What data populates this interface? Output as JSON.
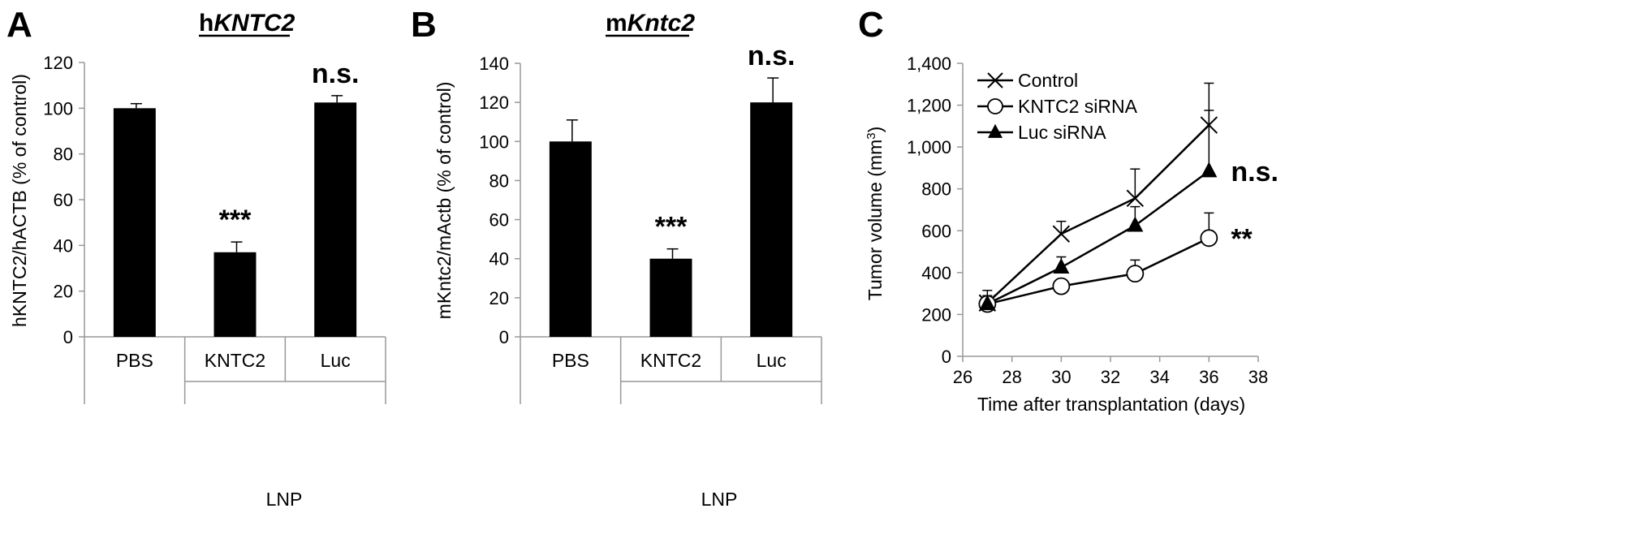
{
  "panels": {
    "A": {
      "letter": "A",
      "title_prefix": "h",
      "title_italic": "KNTC2",
      "ylabel": "hKNTC2/hACTB (% of control)",
      "group_label": "LNP"
    },
    "B": {
      "letter": "B",
      "title_prefix": "m",
      "title_italic": "Kntc2",
      "ylabel": "mKntc2/mActb (% of control)",
      "group_label": "LNP"
    },
    "C": {
      "letter": "C",
      "ylabel_main": "Tumor volume (mm",
      "ylabel_sup": "3",
      "ylabel_end": ")",
      "xlabel": "Time after transplantation (days)"
    }
  },
  "chart_data": [
    {
      "type": "bar",
      "panel": "A",
      "title": "hKNTC2",
      "ylabel": "hKNTC2/hACTB (% of control)",
      "categories": [
        "PBS",
        "KNTC2",
        "Luc"
      ],
      "group": "LNP",
      "values": [
        100,
        37,
        102.5
      ],
      "errors": [
        2,
        4.5,
        3
      ],
      "annotations": [
        "",
        "***",
        "n.s."
      ],
      "ylim": [
        0,
        120
      ],
      "yticks": [
        0,
        20,
        40,
        60,
        80,
        100,
        120
      ],
      "color": "#000000"
    },
    {
      "type": "bar",
      "panel": "B",
      "title": "mKntc2",
      "ylabel": "mKntc2/mActb (% of control)",
      "categories": [
        "PBS",
        "KNTC2",
        "Luc"
      ],
      "group": "LNP",
      "values": [
        100,
        40,
        120
      ],
      "errors": [
        11,
        5,
        12.5
      ],
      "annotations": [
        "",
        "***",
        "n.s."
      ],
      "ylim": [
        0,
        140
      ],
      "yticks": [
        0,
        20,
        40,
        60,
        80,
        100,
        120,
        140
      ],
      "color": "#000000"
    },
    {
      "type": "line",
      "panel": "C",
      "xlabel": "Time after transplantation (days)",
      "ylabel": "Tumor volume (mm3)",
      "xlim": [
        26,
        38
      ],
      "ylim": [
        0,
        1400
      ],
      "xticks": [
        26,
        28,
        30,
        32,
        34,
        36,
        38
      ],
      "yticks": [
        0,
        200,
        400,
        600,
        800,
        1000,
        1200,
        1400
      ],
      "ytick_labels": [
        "0",
        "200",
        "400",
        "600",
        "800",
        "1,000",
        "1,200",
        "1,400"
      ],
      "x": [
        27,
        30,
        33,
        36
      ],
      "series": [
        {
          "name": "Control",
          "marker": "x",
          "values": [
            255,
            585,
            755,
            1105
          ],
          "errors": [
            60,
            60,
            140,
            200
          ]
        },
        {
          "name": "KNTC2 siRNA",
          "marker": "circle",
          "values": [
            250,
            335,
            395,
            565
          ],
          "errors": [
            30,
            30,
            65,
            120
          ]
        },
        {
          "name": "Luc siRNA",
          "marker": "triangle",
          "values": [
            250,
            425,
            625,
            885
          ],
          "errors": [
            40,
            50,
            90,
            290
          ]
        }
      ],
      "end_annotations": [
        {
          "series": "Luc siRNA",
          "text": "n.s."
        },
        {
          "series": "KNTC2 siRNA",
          "text": "**"
        }
      ],
      "legend": "top-left"
    }
  ]
}
